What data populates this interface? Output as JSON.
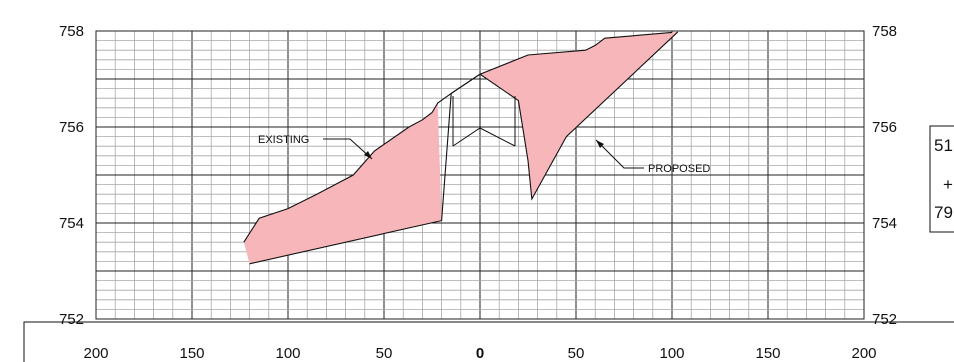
{
  "chart_data": {
    "type": "cross-section",
    "x_ticks": [
      "200",
      "150",
      "100",
      "50",
      "0",
      "50",
      "100",
      "150",
      "200"
    ],
    "y_ticks": [
      "752",
      "754",
      "756",
      "758"
    ],
    "annotations": {
      "existing_label": "EXISTING",
      "proposed_label": "PROPOSED"
    },
    "station_box": [
      "51",
      "+",
      "79"
    ],
    "fill_color": "#f7b7ba",
    "existing_profile": [
      {
        "x": -123,
        "y": 753.6
      },
      {
        "x": -115,
        "y": 754.1
      },
      {
        "x": -100,
        "y": 754.3
      },
      {
        "x": -85,
        "y": 754.6
      },
      {
        "x": -66,
        "y": 755.0
      },
      {
        "x": -55,
        "y": 755.5
      },
      {
        "x": -37,
        "y": 756.0
      },
      {
        "x": -30,
        "y": 756.15
      },
      {
        "x": -25,
        "y": 756.3
      },
      {
        "x": -22,
        "y": 756.5
      },
      {
        "x": -15,
        "y": 756.7
      },
      {
        "x": 0,
        "y": 757.1
      },
      {
        "x": 25,
        "y": 757.5
      },
      {
        "x": 55,
        "y": 757.6
      },
      {
        "x": 60,
        "y": 757.7
      },
      {
        "x": 65,
        "y": 757.85
      },
      {
        "x": 100,
        "y": 757.97
      }
    ],
    "proposed_profile": [
      {
        "x": -120,
        "y": 753.15
      },
      {
        "x": -20,
        "y": 754.05
      },
      {
        "x": -15,
        "y": 756.7
      },
      {
        "x": 0,
        "y": 757.1
      },
      {
        "x": 20,
        "y": 756.55
      },
      {
        "x": 25,
        "y": 755.3
      },
      {
        "x": 27,
        "y": 754.5
      },
      {
        "x": 45,
        "y": 755.8
      },
      {
        "x": 103,
        "y": 757.98
      }
    ],
    "fill_regions": [
      [
        {
          "x": -123,
          "y": 753.6
        },
        {
          "x": -115,
          "y": 754.1
        },
        {
          "x": -100,
          "y": 754.3
        },
        {
          "x": -85,
          "y": 754.6
        },
        {
          "x": -66,
          "y": 755.0
        },
        {
          "x": -55,
          "y": 755.5
        },
        {
          "x": -37,
          "y": 756.0
        },
        {
          "x": -30,
          "y": 756.15
        },
        {
          "x": -25,
          "y": 756.3
        },
        {
          "x": -22,
          "y": 756.5
        },
        {
          "x": -20,
          "y": 754.05
        },
        {
          "x": -120,
          "y": 753.15
        }
      ],
      [
        {
          "x": 0,
          "y": 757.1
        },
        {
          "x": 25,
          "y": 757.5
        },
        {
          "x": 55,
          "y": 757.6
        },
        {
          "x": 60,
          "y": 757.7
        },
        {
          "x": 65,
          "y": 757.85
        },
        {
          "x": 100,
          "y": 757.97
        },
        {
          "x": 103,
          "y": 757.98
        },
        {
          "x": 45,
          "y": 755.8
        },
        {
          "x": 27,
          "y": 754.5
        },
        {
          "x": 25,
          "y": 755.3
        },
        {
          "x": 20,
          "y": 756.55
        }
      ]
    ],
    "xlim": [
      -200,
      200
    ],
    "ylim": [
      752,
      758
    ],
    "grid": true
  }
}
